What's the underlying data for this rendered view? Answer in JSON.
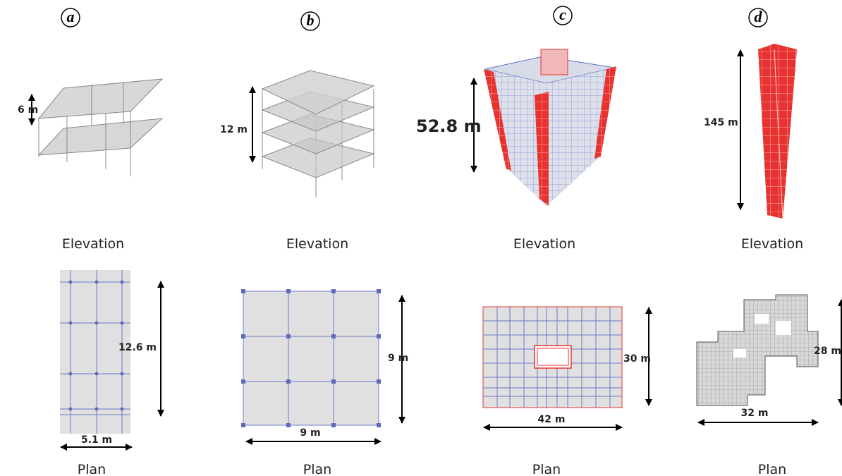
{
  "panels": [
    {
      "letter": "a",
      "elevation_height": "6 m",
      "elevation_label": "Elevation",
      "plan_height": "12.6 m",
      "plan_width": "5.1 m",
      "plan_label": "Plan"
    },
    {
      "letter": "b",
      "elevation_height": "12 m",
      "elevation_label": "Elevation",
      "plan_height": "9 m",
      "plan_width": "9 m",
      "plan_label": "Plan"
    },
    {
      "letter": "c",
      "elevation_height": "52.8 m",
      "elevation_label": "Elevation",
      "plan_height": "30 m",
      "plan_width": "42 m",
      "plan_label": "Plan"
    },
    {
      "letter": "d",
      "elevation_height": "145 m",
      "elevation_label": "Elevation",
      "plan_height": "28 m",
      "plan_width": "32 m",
      "plan_label": "Plan"
    }
  ]
}
